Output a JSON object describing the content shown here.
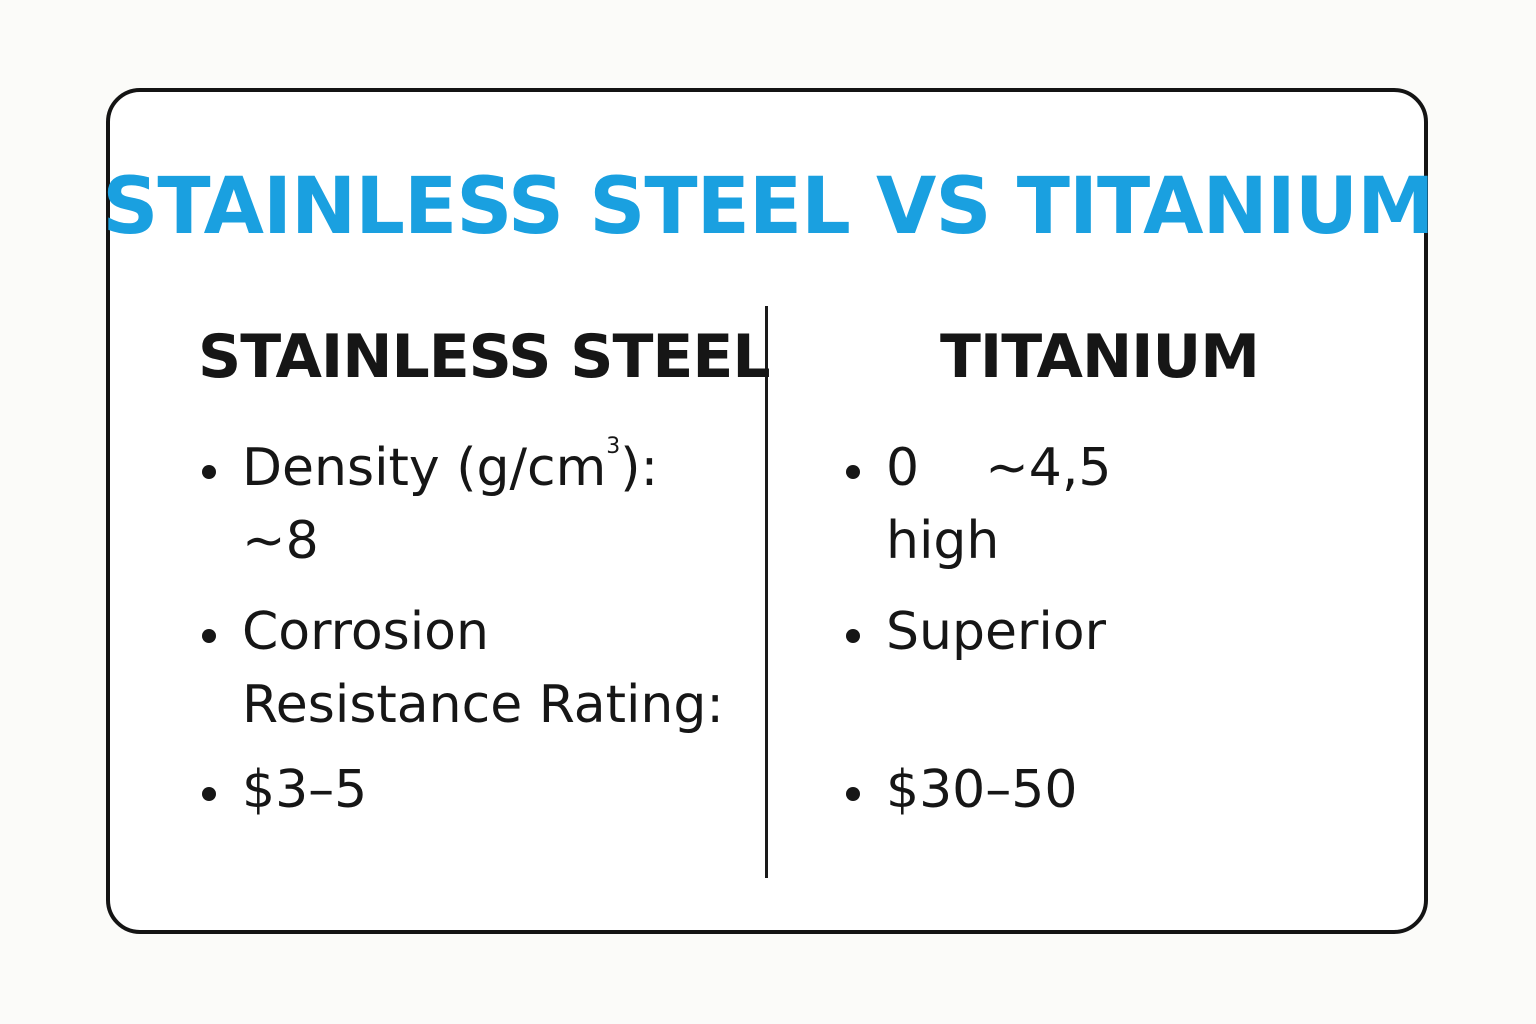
{
  "title": "STAINLESS STEEL VS TITANIUM",
  "columns": [
    {
      "heading": "STAINLESS STEEL",
      "items": [
        {
          "line1_prefix": "Density (g/cm",
          "line1_sup": "3",
          "line1_suffix": "):",
          "line2": "~8"
        },
        {
          "line1": "Corrosion",
          "line2": "Resistance Rating:"
        },
        {
          "line1": "$3–5"
        }
      ]
    },
    {
      "heading": "TITANIUM",
      "items": [
        {
          "line1": "0    ~4,5",
          "line2": "high"
        },
        {
          "line1": "Superior"
        },
        {
          "line1": "$30–50"
        }
      ]
    }
  ]
}
